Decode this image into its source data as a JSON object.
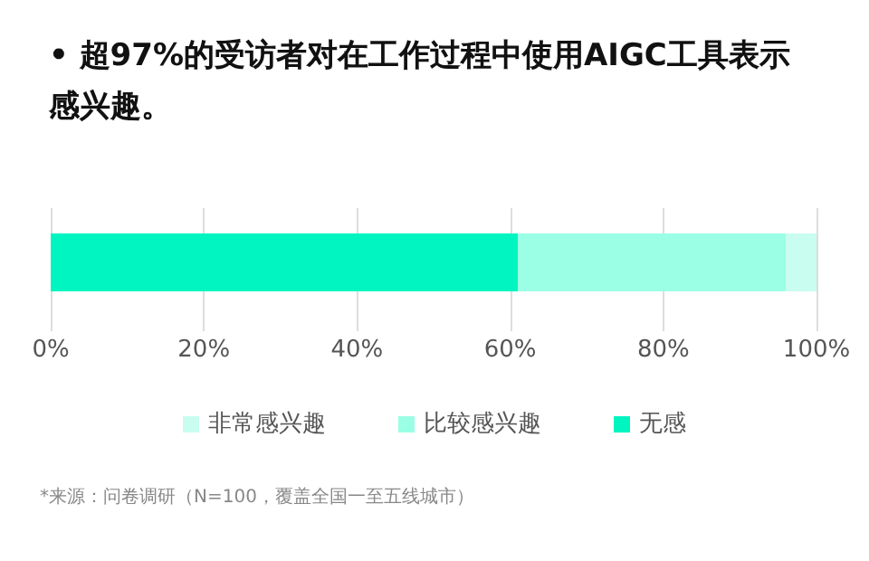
{
  "chart_data": {
    "type": "bar",
    "orientation": "horizontal",
    "stacked": true,
    "title": "• 超97%的受访者对在工作过程中使用AIGC工具表示感兴趣。",
    "categories": [
      null
    ],
    "series": [
      {
        "name": "无感",
        "color": "#00f5c0",
        "values": [
          61
        ]
      },
      {
        "name": "比较感兴趣",
        "color": "#9affe5",
        "values": [
          35
        ]
      },
      {
        "name": "非常感兴趣",
        "color": "#c8fdf0",
        "values": [
          4
        ]
      }
    ],
    "xlim": [
      0,
      100
    ],
    "xticks": [
      {
        "value": 0,
        "label": "0%"
      },
      {
        "value": 20,
        "label": "20%"
      },
      {
        "value": 40,
        "label": "40%"
      },
      {
        "value": 60,
        "label": "60%"
      },
      {
        "value": 80,
        "label": "80%"
      },
      {
        "value": 100,
        "label": "100%"
      }
    ],
    "grid": "x",
    "legend": "bottom",
    "annotations": [
      "*来源：问卷调研（N=100，覆盖全国一至五线城市）"
    ]
  }
}
